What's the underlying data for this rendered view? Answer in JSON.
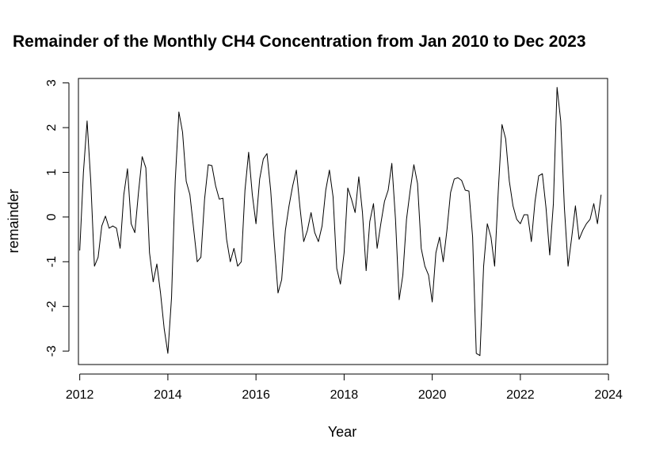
{
  "chart_data": {
    "type": "line",
    "title": "Remainder of the Monthly CH4 Concentration  from Jan 2010 to Dec 2023",
    "xlabel": "Year",
    "ylabel": "remainder",
    "xlim": [
      2011.97,
      2023.98
    ],
    "ylim": [
      -3.3,
      3.1
    ],
    "x_ticks": [
      2012,
      2014,
      2016,
      2018,
      2020,
      2022,
      2024
    ],
    "x_tick_labels": [
      "2012",
      "2014",
      "2016",
      "2018",
      "2020",
      "2022",
      "2024"
    ],
    "y_ticks": [
      -3,
      -2,
      -1,
      0,
      1,
      2,
      3
    ],
    "y_tick_labels": [
      "-3",
      "-2",
      "-1",
      "0",
      "1",
      "2",
      "3"
    ],
    "grid": false,
    "legend": "none",
    "line_color": "#000000",
    "series": [
      {
        "x_start": 2012.0,
        "x_step": 0.08333,
        "values": [
          -0.75,
          1.0,
          2.15,
          0.8,
          -1.1,
          -0.9,
          -0.2,
          0.02,
          -0.25,
          -0.2,
          -0.25,
          -0.7,
          0.5,
          1.08,
          -0.15,
          -0.35,
          0.55,
          1.35,
          1.1,
          -0.8,
          -1.45,
          -1.05,
          -1.7,
          -2.5,
          -3.05,
          -1.8,
          0.8,
          2.35,
          1.9,
          0.8,
          0.5,
          -0.25,
          -1.0,
          -0.9,
          0.4,
          1.17,
          1.15,
          0.7,
          0.4,
          0.42,
          -0.5,
          -1.0,
          -0.7,
          -1.1,
          -1.0,
          0.6,
          1.45,
          0.5,
          -0.15,
          0.85,
          1.3,
          1.42,
          0.6,
          -0.6,
          -1.7,
          -1.4,
          -0.3,
          0.25,
          0.7,
          1.05,
          0.2,
          -0.55,
          -0.3,
          0.1,
          -0.35,
          -0.55,
          -0.2,
          0.6,
          1.05,
          0.45,
          -1.15,
          -1.5,
          -0.8,
          0.65,
          0.4,
          0.1,
          0.9,
          0.1,
          -1.2,
          -0.1,
          0.3,
          -0.7,
          -0.15,
          0.35,
          0.6,
          1.2,
          -0.05,
          -1.85,
          -1.3,
          -0.05,
          0.6,
          1.17,
          0.75,
          -0.7,
          -1.1,
          -1.3,
          -1.9,
          -0.8,
          -0.45,
          -1.0,
          -0.3,
          0.55,
          0.85,
          0.88,
          0.82,
          0.6,
          0.58,
          -0.45,
          -3.05,
          -3.1,
          -1.1,
          -0.15,
          -0.45,
          -1.1,
          0.6,
          2.07,
          1.75,
          0.8,
          0.25,
          -0.05,
          -0.15,
          0.05,
          0.05,
          -0.55,
          0.35,
          0.92,
          0.97,
          0.2,
          -0.85,
          0.3,
          2.9,
          2.15,
          0.2,
          -1.1,
          -0.45,
          0.25,
          -0.5,
          -0.3,
          -0.15,
          -0.05,
          0.3,
          -0.15,
          0.5
        ]
      }
    ]
  }
}
